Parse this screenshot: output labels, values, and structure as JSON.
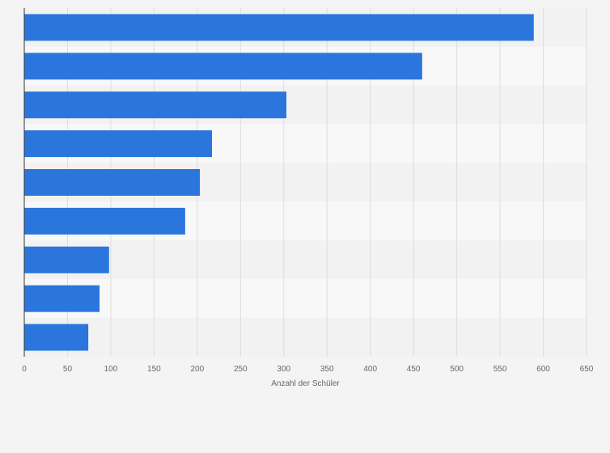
{
  "chart_data": {
    "type": "bar",
    "orientation": "horizontal",
    "title": "",
    "xlabel": "Anzahl der Schüler",
    "ylabel": "",
    "categories": [
      "",
      "",
      "",
      "",
      "",
      "",
      "",
      "",
      ""
    ],
    "values": [
      589,
      460,
      303,
      217,
      203,
      186,
      98,
      87,
      74
    ],
    "xlim": [
      0,
      650
    ],
    "xticks": [
      0,
      50,
      100,
      150,
      200,
      250,
      300,
      350,
      400,
      450,
      500,
      550,
      600,
      650
    ],
    "grid": true,
    "legend": "none",
    "colors": {
      "bar": "#2a76dd",
      "band_dark": "#f2f2f2",
      "band_light": "#f8f8f8",
      "grid": "#dddddd",
      "axis": "#333333",
      "text": "#666666"
    }
  }
}
